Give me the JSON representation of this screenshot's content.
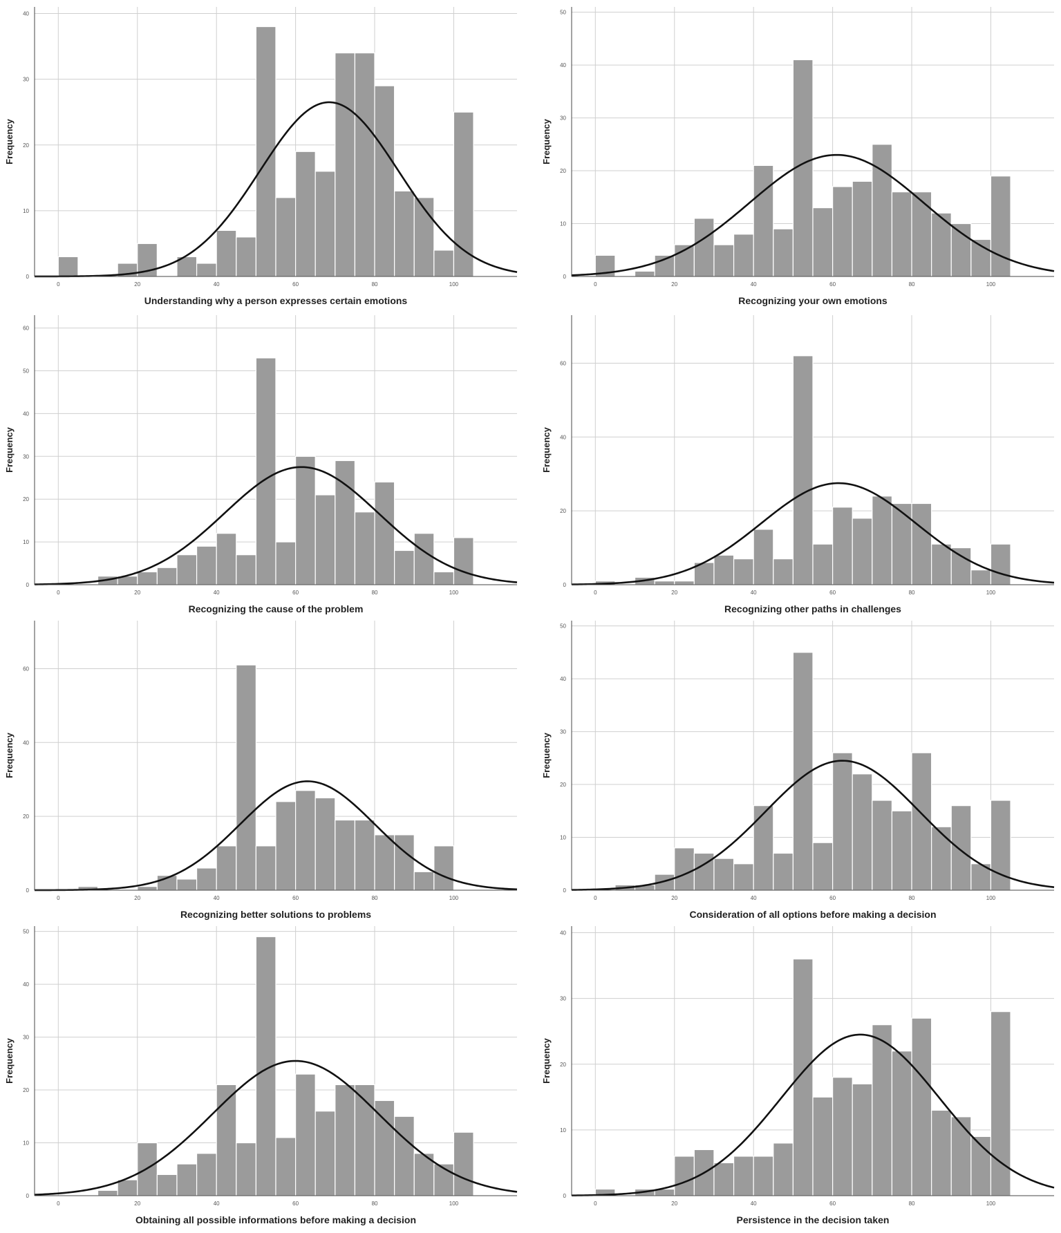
{
  "colors": {
    "bar_fill": "#9b9b9b",
    "bar_stroke": "#ffffff",
    "curve": "#111111",
    "gridline": "#cfcfcf",
    "axis": "#444444",
    "background": "#ffffff"
  },
  "chart_data": [
    {
      "type": "bar",
      "overlay": "normal-curve",
      "xlabel": "Understanding why a person expresses certain emotions",
      "ylabel": "Frequency",
      "xlim": [
        -6,
        116
      ],
      "ylim": [
        0,
        41
      ],
      "xticks": [
        0,
        20,
        40,
        60,
        80,
        100
      ],
      "yticks": [
        0,
        10,
        20,
        30,
        40
      ],
      "grid": true,
      "bar_width": 5,
      "bins": [
        0,
        15,
        20,
        30,
        35,
        40,
        45,
        50,
        55,
        60,
        65,
        70,
        75,
        80,
        85,
        90,
        95,
        100
      ],
      "values": [
        3,
        2,
        5,
        3,
        2,
        7,
        6,
        38,
        12,
        19,
        16,
        34,
        34,
        29,
        13,
        12,
        4,
        25
      ],
      "curve": {
        "peak": 26.5,
        "mean": 68.5,
        "sd": 17.5
      }
    },
    {
      "type": "bar",
      "overlay": "normal-curve",
      "xlabel": "Recognizing your own emotions",
      "ylabel": "Frequency",
      "xlim": [
        -6,
        116
      ],
      "ylim": [
        0,
        51
      ],
      "xticks": [
        0,
        20,
        40,
        60,
        80,
        100
      ],
      "yticks": [
        0,
        10,
        20,
        30,
        40,
        50
      ],
      "grid": true,
      "bar_width": 5,
      "bins": [
        0,
        10,
        15,
        20,
        25,
        30,
        35,
        40,
        45,
        50,
        55,
        60,
        65,
        70,
        75,
        80,
        85,
        90,
        95,
        100
      ],
      "values": [
        4,
        1,
        4,
        6,
        11,
        6,
        8,
        21,
        9,
        41,
        13,
        17,
        18,
        25,
        16,
        16,
        12,
        10,
        7,
        19
      ],
      "curve": {
        "peak": 23,
        "mean": 61,
        "sd": 22
      }
    },
    {
      "type": "bar",
      "overlay": "normal-curve",
      "xlabel": "Recognizing the cause of the problem",
      "ylabel": "Frequency",
      "xlim": [
        -6,
        116
      ],
      "ylim": [
        0,
        63
      ],
      "xticks": [
        0,
        20,
        40,
        60,
        80,
        100
      ],
      "yticks": [
        0,
        10,
        20,
        30,
        40,
        50,
        60
      ],
      "grid": true,
      "bar_width": 5,
      "bins": [
        10,
        15,
        20,
        25,
        30,
        35,
        40,
        45,
        50,
        55,
        60,
        65,
        70,
        75,
        80,
        85,
        90,
        95,
        100
      ],
      "values": [
        2,
        2,
        3,
        4,
        7,
        9,
        12,
        7,
        53,
        10,
        30,
        21,
        29,
        17,
        24,
        8,
        12,
        3,
        11
      ],
      "curve": {
        "peak": 27.5,
        "mean": 61.5,
        "sd": 19.5
      }
    },
    {
      "type": "bar",
      "overlay": "normal-curve",
      "xlabel": "Recognizing other paths in challenges",
      "ylabel": "Frequency",
      "xlim": [
        -6,
        116
      ],
      "ylim": [
        0,
        73
      ],
      "xticks": [
        0,
        20,
        40,
        60,
        80,
        100
      ],
      "yticks": [
        0,
        20,
        40,
        60
      ],
      "grid": true,
      "bar_width": 5,
      "bins": [
        0,
        10,
        15,
        20,
        25,
        30,
        35,
        40,
        45,
        50,
        55,
        60,
        65,
        70,
        75,
        80,
        85,
        90,
        95,
        100
      ],
      "values": [
        1,
        2,
        1,
        1,
        6,
        8,
        7,
        15,
        7,
        62,
        11,
        21,
        18,
        24,
        22,
        22,
        11,
        10,
        4,
        11
      ],
      "curve": {
        "peak": 27.5,
        "mean": 61.5,
        "sd": 19.5
      }
    },
    {
      "type": "bar",
      "overlay": "normal-curve",
      "xlabel": "Recognizing better solutions to problems",
      "ylabel": "Frequency",
      "xlim": [
        -6,
        116
      ],
      "ylim": [
        0,
        73
      ],
      "xticks": [
        0,
        20,
        40,
        60,
        80,
        100
      ],
      "yticks": [
        0,
        20,
        40,
        60
      ],
      "grid": true,
      "bar_width": 5,
      "bins": [
        5,
        20,
        25,
        30,
        35,
        40,
        45,
        50,
        55,
        60,
        65,
        70,
        75,
        80,
        85,
        90,
        95
      ],
      "values": [
        1,
        1,
        4,
        3,
        6,
        12,
        61,
        12,
        24,
        27,
        25,
        19,
        19,
        15,
        15,
        5,
        12
      ],
      "curve": {
        "peak": 29.5,
        "mean": 63,
        "sd": 17
      }
    },
    {
      "type": "bar",
      "overlay": "normal-curve",
      "xlabel": "Consideration of all options before making a decision",
      "ylabel": "Frequency",
      "xlim": [
        -6,
        116
      ],
      "ylim": [
        0,
        51
      ],
      "xticks": [
        0,
        20,
        40,
        60,
        80,
        100
      ],
      "yticks": [
        0,
        10,
        20,
        30,
        40,
        50
      ],
      "grid": true,
      "bar_width": 5,
      "bins": [
        5,
        10,
        15,
        20,
        25,
        30,
        35,
        40,
        45,
        50,
        55,
        60,
        65,
        70,
        75,
        80,
        85,
        90,
        95,
        100
      ],
      "values": [
        1,
        1,
        3,
        8,
        7,
        6,
        5,
        16,
        7,
        45,
        9,
        26,
        22,
        17,
        15,
        26,
        12,
        16,
        5,
        17
      ],
      "curve": {
        "peak": 24.5,
        "mean": 62.5,
        "sd": 19.5
      }
    },
    {
      "type": "bar",
      "overlay": "normal-curve",
      "xlabel": "Obtaining all possible informations before making a decision",
      "ylabel": "Frequency",
      "xlim": [
        -6,
        116
      ],
      "ylim": [
        0,
        51
      ],
      "xticks": [
        0,
        20,
        40,
        60,
        80,
        100
      ],
      "yticks": [
        0,
        10,
        20,
        30,
        40,
        50
      ],
      "grid": true,
      "bar_width": 5,
      "bins": [
        10,
        15,
        20,
        25,
        30,
        35,
        40,
        45,
        50,
        55,
        60,
        65,
        70,
        75,
        80,
        85,
        90,
        95,
        100
      ],
      "values": [
        1,
        3,
        10,
        4,
        6,
        8,
        21,
        10,
        49,
        11,
        23,
        16,
        21,
        21,
        18,
        15,
        8,
        6,
        12
      ],
      "curve": {
        "peak": 25.5,
        "mean": 60,
        "sd": 21
      }
    },
    {
      "type": "bar",
      "overlay": "normal-curve",
      "xlabel": "Persistence in the decision taken",
      "ylabel": "Frequency",
      "xlim": [
        -6,
        116
      ],
      "ylim": [
        0,
        41
      ],
      "xticks": [
        0,
        20,
        40,
        60,
        80,
        100
      ],
      "yticks": [
        0,
        10,
        20,
        30,
        40
      ],
      "grid": true,
      "bar_width": 5,
      "bins": [
        0,
        10,
        15,
        20,
        25,
        30,
        35,
        40,
        45,
        50,
        55,
        60,
        65,
        70,
        75,
        80,
        85,
        90,
        95,
        100
      ],
      "values": [
        1,
        1,
        1,
        6,
        7,
        5,
        6,
        6,
        8,
        36,
        15,
        18,
        17,
        26,
        22,
        27,
        13,
        12,
        9,
        28
      ],
      "curve": {
        "peak": 24.5,
        "mean": 67,
        "sd": 20
      }
    }
  ]
}
